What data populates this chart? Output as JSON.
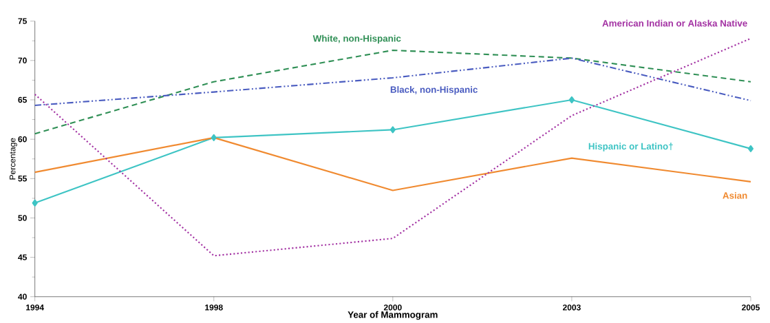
{
  "chart_data": {
    "type": "line",
    "xlabel": "Year of Mammogram",
    "ylabel": "Percentage",
    "categories": [
      "1994",
      "1998",
      "2000",
      "2003",
      "2005"
    ],
    "ylim": [
      40,
      75
    ],
    "yticks": [
      40,
      45,
      50,
      55,
      60,
      65,
      70,
      75
    ],
    "grid": false,
    "legend": false,
    "marker": "none",
    "series": [
      {
        "name": "White, non-Hispanic",
        "color": "#2f8f55",
        "line_style": "dashed",
        "values": [
          60.7,
          67.3,
          71.3,
          70.3,
          67.3
        ]
      },
      {
        "name": "Black, non-Hispanic",
        "color": "#4a5cc0",
        "line_style": "dashdotdot",
        "values": [
          64.3,
          66.0,
          67.8,
          70.3,
          64.9
        ]
      },
      {
        "name": "Hispanic or Latino†",
        "color": "#3ec4c4",
        "line_style": "solid",
        "marker": "diamond",
        "values": [
          51.9,
          60.2,
          61.2,
          65.0,
          58.8
        ]
      },
      {
        "name": "Asian",
        "color": "#f08a30",
        "line_style": "solid",
        "values": [
          55.8,
          60.2,
          53.5,
          57.6,
          54.6
        ]
      },
      {
        "name": "American Indian or Alaska Native",
        "color": "#a332a3",
        "line_style": "dotted",
        "values": [
          65.7,
          45.2,
          47.4,
          63.0,
          72.8
        ]
      }
    ]
  }
}
